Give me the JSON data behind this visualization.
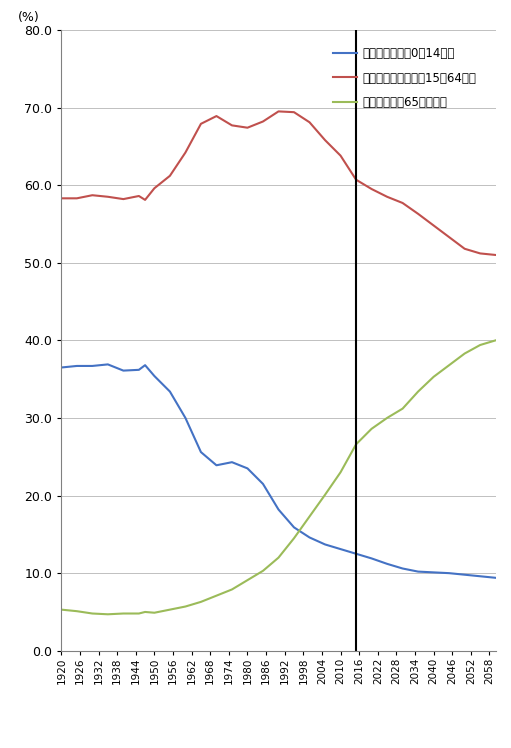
{
  "ylabel": "(%)",
  "xmin": 1920,
  "xmax": 2060,
  "ymin": 0.0,
  "ymax": 80.0,
  "yticks": [
    0.0,
    10.0,
    20.0,
    30.0,
    40.0,
    50.0,
    60.0,
    70.0,
    80.0
  ],
  "xticks": [
    1920,
    1926,
    1932,
    1938,
    1944,
    1950,
    1956,
    1962,
    1968,
    1974,
    1980,
    1986,
    1992,
    1998,
    2004,
    2010,
    2016,
    2022,
    2028,
    2034,
    2040,
    2046,
    2052,
    2058
  ],
  "vline_x": 2015,
  "legend_labels": [
    "年少人口比率（0～14歳）",
    "生産年齢人口比率（15～64歳）",
    "高齢者人口（65歳以上）"
  ],
  "line_colors": [
    "#4472c4",
    "#c0504d",
    "#9bbb59"
  ],
  "young_pop": {
    "years": [
      1920,
      1925,
      1930,
      1935,
      1940,
      1945,
      1947,
      1950,
      1955,
      1960,
      1965,
      1970,
      1975,
      1980,
      1985,
      1990,
      1995,
      2000,
      2005,
      2010,
      2015,
      2020,
      2025,
      2030,
      2035,
      2040,
      2045,
      2050,
      2055,
      2060
    ],
    "values": [
      36.5,
      36.7,
      36.7,
      36.9,
      36.1,
      36.2,
      36.8,
      35.4,
      33.4,
      30.0,
      25.6,
      23.9,
      24.3,
      23.5,
      21.5,
      18.2,
      15.9,
      14.6,
      13.7,
      13.1,
      12.5,
      11.9,
      11.2,
      10.6,
      10.2,
      10.1,
      10.0,
      9.8,
      9.6,
      9.4
    ]
  },
  "working_pop": {
    "years": [
      1920,
      1925,
      1930,
      1935,
      1940,
      1945,
      1947,
      1950,
      1955,
      1960,
      1965,
      1970,
      1975,
      1980,
      1985,
      1990,
      1995,
      2000,
      2005,
      2010,
      2015,
      2020,
      2025,
      2030,
      2035,
      2040,
      2045,
      2050,
      2055,
      2060
    ],
    "values": [
      58.3,
      58.3,
      58.7,
      58.5,
      58.2,
      58.6,
      58.1,
      59.6,
      61.2,
      64.2,
      67.9,
      68.9,
      67.7,
      67.4,
      68.2,
      69.5,
      69.4,
      68.1,
      65.8,
      63.8,
      60.7,
      59.5,
      58.5,
      57.7,
      56.3,
      54.8,
      53.3,
      51.8,
      51.2,
      51.0
    ]
  },
  "elderly_pop": {
    "years": [
      1920,
      1925,
      1930,
      1935,
      1940,
      1945,
      1947,
      1950,
      1955,
      1960,
      1965,
      1970,
      1975,
      1980,
      1985,
      1990,
      1995,
      2000,
      2005,
      2010,
      2015,
      2020,
      2025,
      2030,
      2035,
      2040,
      2045,
      2050,
      2055,
      2060
    ],
    "values": [
      5.3,
      5.1,
      4.8,
      4.7,
      4.8,
      4.8,
      5.0,
      4.9,
      5.3,
      5.7,
      6.3,
      7.1,
      7.9,
      9.1,
      10.3,
      12.0,
      14.5,
      17.3,
      20.1,
      23.0,
      26.6,
      28.6,
      30.0,
      31.2,
      33.4,
      35.3,
      36.8,
      38.3,
      39.4,
      40.0
    ]
  }
}
